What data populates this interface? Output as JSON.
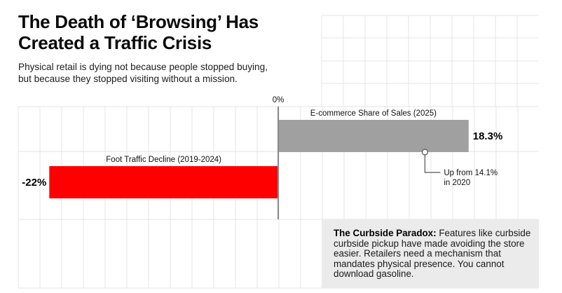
{
  "header": {
    "title_lines": [
      "The Death of ‘Browsing’ Has",
      "Created a Traffic Crisis"
    ],
    "subtitle_lines": [
      "Physical retail is dying not because people stopped buying,",
      "but because they stopped visiting without a mission."
    ]
  },
  "chart_data": {
    "type": "bar",
    "orientation": "horizontal",
    "title": "The Death of ‘Browsing’ Has Created a Traffic Crisis",
    "subtitle": "Physical retail is dying not because people stopped buying, but because they stopped visiting without a mission.",
    "xlabel": "",
    "ylabel": "",
    "axis_label": "0%",
    "units": "%",
    "grid": true,
    "legend": "none",
    "xlim": [
      -25,
      25
    ],
    "categories": [
      "E-commerce Share of Sales (2025)",
      "Foot Traffic Decline (2019-2024)"
    ],
    "values": [
      18.3,
      -22
    ],
    "value_labels": [
      "18.3%",
      "-22%"
    ],
    "colors": [
      "#a0a0a0",
      "#ff0000"
    ],
    "annotations": [
      {
        "series": "E-commerce Share of Sales (2025)",
        "value": 14.1,
        "text_lines": [
          "Up from 14.1%",
          "in 2020"
        ]
      }
    ]
  },
  "callout": {
    "heading": "The Curbside Paradox:",
    "lines": [
      " Features like curbside",
      "curbside pickup have made avoiding the store",
      "easier. Retailers need a mechanism that",
      "mandates physical presence. You cannot",
      "download gasoline."
    ]
  },
  "colors": {
    "grid": "#e4e4e4",
    "axis": "#8a8a8a",
    "callout_bg": "#ebebeb"
  }
}
